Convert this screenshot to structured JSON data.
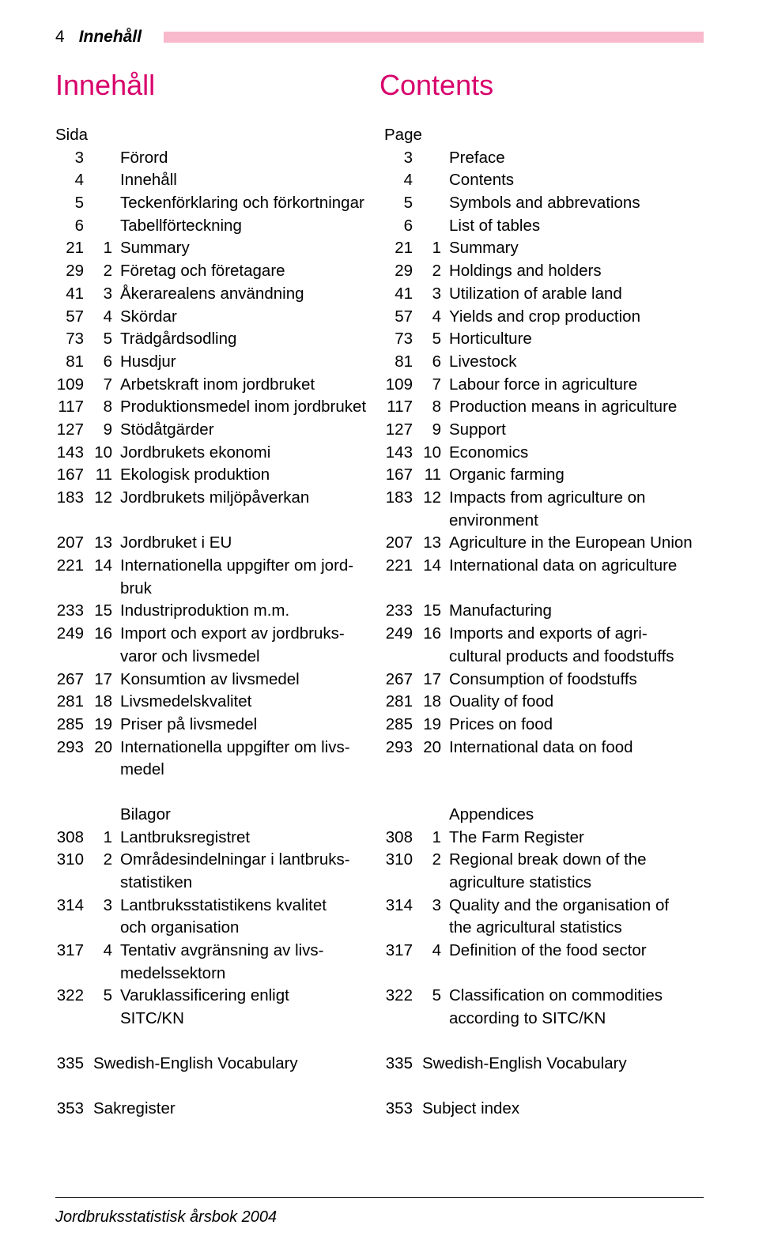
{
  "header": {
    "page_number": "4",
    "label": "Innehåll"
  },
  "titles": {
    "left": "Innehåll",
    "right": "Contents"
  },
  "left_col": {
    "heading": "Sida",
    "entries": [
      {
        "page": "3",
        "num": "",
        "text": "Förord"
      },
      {
        "page": "4",
        "num": "",
        "text": "Innehåll"
      },
      {
        "page": "5",
        "num": "",
        "text": "Teckenförklaring och förkortningar"
      },
      {
        "page": "6",
        "num": "",
        "text": "Tabellförteckning"
      },
      {
        "page": "21",
        "num": "1",
        "text": "Summary"
      },
      {
        "page": "29",
        "num": "2",
        "text": "Företag och företagare"
      },
      {
        "page": "41",
        "num": "3",
        "text": "Åkerarealens användning"
      },
      {
        "page": "57",
        "num": "4",
        "text": "Skördar"
      },
      {
        "page": "73",
        "num": "5",
        "text": "Trädgårdsodling"
      },
      {
        "page": "81",
        "num": "6",
        "text": "Husdjur"
      },
      {
        "page": "109",
        "num": "7",
        "text": "Arbetskraft inom jordbruket"
      },
      {
        "page": "117",
        "num": "8",
        "text": "Produktionsmedel inom jordbruket"
      },
      {
        "page": "127",
        "num": "9",
        "text": "Stödåtgärder"
      },
      {
        "page": "143",
        "num": "10",
        "text": "Jordbrukets ekonomi"
      },
      {
        "page": "167",
        "num": "11",
        "text": "Ekologisk produktion"
      },
      {
        "page": "183",
        "num": "12",
        "text": "Jordbrukets miljöpåverkan"
      },
      {
        "page": "",
        "num": "",
        "text": ""
      },
      {
        "page": "207",
        "num": "13",
        "text": "Jordbruket i EU"
      },
      {
        "page": "221",
        "num": "14",
        "text": "Internationella uppgifter om jord-"
      },
      {
        "page": "",
        "num": "",
        "text": "bruk"
      },
      {
        "page": "233",
        "num": "15",
        "text": "Industriproduktion m.m."
      },
      {
        "page": "249",
        "num": "16",
        "text": "Import och export av jordbruks-"
      },
      {
        "page": "",
        "num": "",
        "text": "varor och livsmedel"
      },
      {
        "page": "267",
        "num": "17",
        "text": "Konsumtion av livsmedel"
      },
      {
        "page": "281",
        "num": "18",
        "text": "Livsmedelskvalitet"
      },
      {
        "page": "285",
        "num": "19",
        "text": "Priser på livsmedel"
      },
      {
        "page": "293",
        "num": "20",
        "text": "Internationella uppgifter om livs-"
      },
      {
        "page": "",
        "num": "",
        "text": "medel"
      }
    ],
    "appendix_heading": "Bilagor",
    "appendix_entries": [
      {
        "page": "308",
        "num": "1",
        "text": "Lantbruksregistret"
      },
      {
        "page": "310",
        "num": "2",
        "text": "Områdesindelningar i lantbruks-"
      },
      {
        "page": "",
        "num": "",
        "text": "statistiken"
      },
      {
        "page": "314",
        "num": "3",
        "text": "Lantbruksstatistikens kvalitet"
      },
      {
        "page": "",
        "num": "",
        "text": "och organisation"
      },
      {
        "page": "317",
        "num": "4",
        "text": "Tentativ avgränsning av livs-"
      },
      {
        "page": "",
        "num": "",
        "text": "medelssektorn"
      },
      {
        "page": "322",
        "num": "5",
        "text": "Varuklassificering enligt"
      },
      {
        "page": "",
        "num": "",
        "text": "SITC/KN"
      }
    ],
    "extras": [
      {
        "page": "335",
        "text": "Swedish-English Vocabulary"
      },
      {
        "page": "353",
        "text": "Sakregister"
      }
    ]
  },
  "right_col": {
    "heading": "Page",
    "entries": [
      {
        "page": "3",
        "num": "",
        "text": "Preface"
      },
      {
        "page": "4",
        "num": "",
        "text": "Contents"
      },
      {
        "page": "5",
        "num": "",
        "text": "Symbols and abbrevations"
      },
      {
        "page": "6",
        "num": "",
        "text": "List of tables"
      },
      {
        "page": "21",
        "num": "1",
        "text": "Summary"
      },
      {
        "page": "29",
        "num": "2",
        "text": "Holdings and holders"
      },
      {
        "page": "41",
        "num": "3",
        "text": "Utilization of arable land"
      },
      {
        "page": "57",
        "num": "4",
        "text": "Yields and crop production"
      },
      {
        "page": "73",
        "num": "5",
        "text": "Horticulture"
      },
      {
        "page": "81",
        "num": "6",
        "text": "Livestock"
      },
      {
        "page": "109",
        "num": "7",
        "text": "Labour force in agriculture"
      },
      {
        "page": "117",
        "num": "8",
        "text": "Production means in agriculture"
      },
      {
        "page": "127",
        "num": "9",
        "text": "Support"
      },
      {
        "page": "143",
        "num": "10",
        "text": "Economics"
      },
      {
        "page": "167",
        "num": "11",
        "text": "Organic farming"
      },
      {
        "page": "183",
        "num": "12",
        "text": "Impacts from agriculture on"
      },
      {
        "page": "",
        "num": "",
        "text": "environment"
      },
      {
        "page": "207",
        "num": "13",
        "text": "Agriculture in the European Union"
      },
      {
        "page": "221",
        "num": "14",
        "text": "International data on agriculture"
      },
      {
        "page": "",
        "num": "",
        "text": ""
      },
      {
        "page": "233",
        "num": "15",
        "text": "Manufacturing"
      },
      {
        "page": "249",
        "num": "16",
        "text": "Imports and exports of agri-"
      },
      {
        "page": "",
        "num": "",
        "text": "cultural products and foodstuffs"
      },
      {
        "page": "267",
        "num": "17",
        "text": "Consumption of foodstuffs"
      },
      {
        "page": "281",
        "num": "18",
        "text": "Ouality of food"
      },
      {
        "page": "285",
        "num": "19",
        "text": "Prices on food"
      },
      {
        "page": "293",
        "num": "20",
        "text": "International data on food"
      },
      {
        "page": "",
        "num": "",
        "text": ""
      }
    ],
    "appendix_heading": "Appendices",
    "appendix_entries": [
      {
        "page": "308",
        "num": "1",
        "text": "The Farm Register"
      },
      {
        "page": "310",
        "num": "2",
        "text": "Regional break down of the"
      },
      {
        "page": "",
        "num": "",
        "text": "agriculture statistics"
      },
      {
        "page": "314",
        "num": "3",
        "text": "Quality and the organisation of"
      },
      {
        "page": "",
        "num": "",
        "text": "the agricultural statistics"
      },
      {
        "page": "317",
        "num": "4",
        "text": "Definition of the food sector"
      },
      {
        "page": "",
        "num": "",
        "text": ""
      },
      {
        "page": "322",
        "num": "5",
        "text": "Classification on commodities"
      },
      {
        "page": "",
        "num": "",
        "text": "according to SITC/KN"
      }
    ],
    "extras": [
      {
        "page": "335",
        "text": "Swedish-English Vocabulary"
      },
      {
        "page": "353",
        "text": "Subject index"
      }
    ]
  },
  "footer": "Jordbruksstatistisk årsbok 2004",
  "colors": {
    "accent_pink": "#d8006b",
    "bar_pink": "#f8b9cc",
    "text": "#000000",
    "bg": "#ffffff"
  }
}
